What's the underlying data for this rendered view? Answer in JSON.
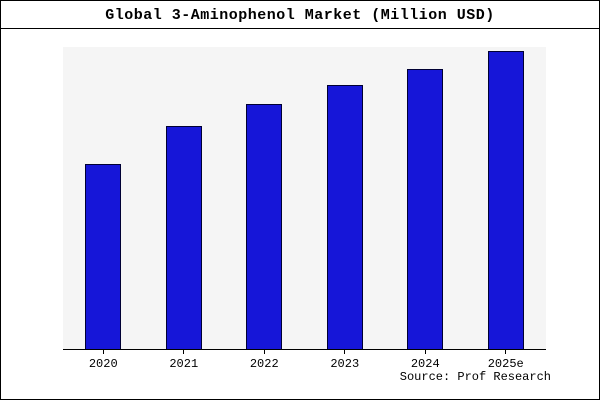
{
  "chart_data": {
    "type": "bar",
    "title": "Global 3-Aminophenol Market (Million USD)",
    "categories": [
      "2020",
      "2021",
      "2022",
      "2023",
      "2024",
      "2025e"
    ],
    "values": [
      101,
      122,
      134,
      144,
      153,
      163
    ],
    "xlabel": "",
    "ylabel": "",
    "ylim": [
      0,
      165
    ],
    "grid": false,
    "legend": false,
    "bar_color": "#1616d8",
    "bar_edge_color": "#000033",
    "plot_background": "#f5f5f5",
    "outer_background": "#ffffff"
  },
  "source": {
    "label": "Source: Prof Research"
  }
}
